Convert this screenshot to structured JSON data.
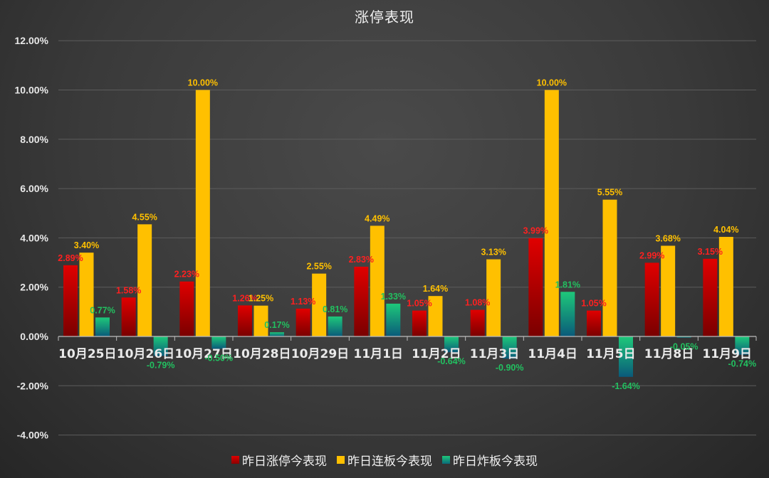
{
  "chart_data": {
    "type": "bar",
    "title": "涨停表现",
    "xlabel": "",
    "ylabel": "",
    "ylim": [
      -0.04,
      0.12
    ],
    "yticks": [
      "12.00%",
      "10.00%",
      "8.00%",
      "6.00%",
      "4.00%",
      "2.00%",
      "0.00%",
      "-2.00%",
      "-4.00%"
    ],
    "ytick_values": [
      12,
      10,
      8,
      6,
      4,
      2,
      0,
      -2,
      -4
    ],
    "grid": true,
    "legend_position": "bottom",
    "categories": [
      "10月25日",
      "10月26日",
      "10月27日",
      "10月28日",
      "10月29日",
      "11月1日",
      "11月2日",
      "11月3日",
      "11月4日",
      "11月5日",
      "11月8日",
      "11月9日"
    ],
    "series": [
      {
        "name": "昨日涨停今表现",
        "color": "#e00000",
        "color_dark": "#7a0000",
        "label_color": "#ff2020",
        "values": [
          2.89,
          1.58,
          2.23,
          1.26,
          1.13,
          2.83,
          1.05,
          1.08,
          3.99,
          1.05,
          2.99,
          3.15
        ]
      },
      {
        "name": "昨日连板今表现",
        "color": "#ffc000",
        "color_dark": "#ffc000",
        "label_color": "#ffc000",
        "values": [
          3.4,
          4.55,
          10.0,
          1.25,
          2.55,
          4.49,
          1.64,
          3.13,
          10.0,
          5.55,
          3.68,
          4.04
        ]
      },
      {
        "name": "昨日炸板今表现",
        "color": "#1ec87a",
        "color_dark": "#0a5a7a",
        "label_color": "#22c060",
        "values": [
          0.77,
          -0.79,
          -0.5,
          0.17,
          0.81,
          1.33,
          -0.64,
          -0.9,
          1.81,
          -1.64,
          -0.05,
          -0.74
        ]
      }
    ]
  }
}
